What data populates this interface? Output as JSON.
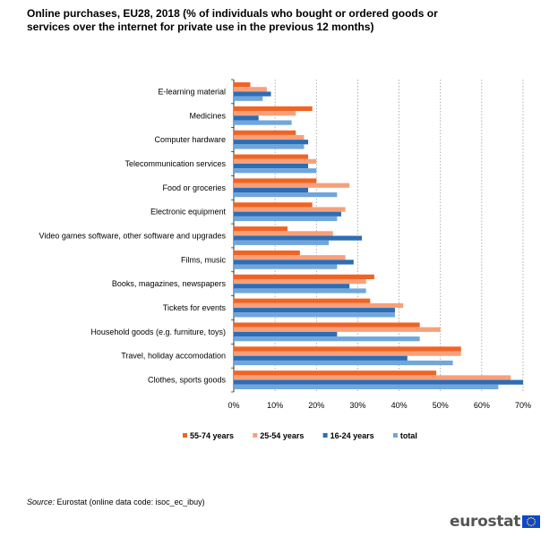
{
  "title_line1": "Online purchases, EU28, 2018  (% of individuals who bought or ordered goods or",
  "title_line2": "services over the internet for private use in the previous 12 months)",
  "source_label": "Source:",
  "source_text": "Eurostat (online data code: isoc_ec_ibuy)",
  "logo_text": "eurostat",
  "logo_icon": "eu-flag-icon",
  "chart_data": {
    "type": "bar",
    "orientation": "horizontal",
    "categories": [
      "E-learning material",
      "Medicines",
      "Computer hardware",
      "Telecommunication services",
      "Food or groceries",
      "Electronic equipment",
      "Video games software, other software and upgrades",
      "Films, music",
      "Books, magazines, newspapers",
      "Tickets for events",
      "Household goods (e.g. furniture, toys)",
      "Travel, holiday accomodation",
      "Clothes, sports goods"
    ],
    "series": [
      {
        "name": "55-74 years",
        "color": "#f06424",
        "values": [
          4,
          19,
          15,
          18,
          20,
          19,
          13,
          16,
          34,
          33,
          45,
          55,
          49
        ]
      },
      {
        "name": "25-54 years",
        "color": "#f7a07a",
        "values": [
          8,
          15,
          17,
          20,
          28,
          27,
          24,
          27,
          32,
          41,
          50,
          55,
          67
        ]
      },
      {
        "name": "16-24 years",
        "color": "#2d6db5",
        "values": [
          9,
          6,
          18,
          18,
          18,
          26,
          31,
          29,
          28,
          39,
          25,
          42,
          70
        ]
      },
      {
        "name": "total",
        "color": "#6fa6dc",
        "values": [
          7,
          14,
          17,
          20,
          25,
          25,
          23,
          25,
          32,
          39,
          45,
          53,
          64
        ]
      }
    ],
    "x_ticks": [
      "0%",
      "10%",
      "20%",
      "30%",
      "40%",
      "50%",
      "60%",
      "70%"
    ],
    "xlim": [
      0,
      70
    ],
    "grid": true,
    "legend_position": "bottom"
  }
}
